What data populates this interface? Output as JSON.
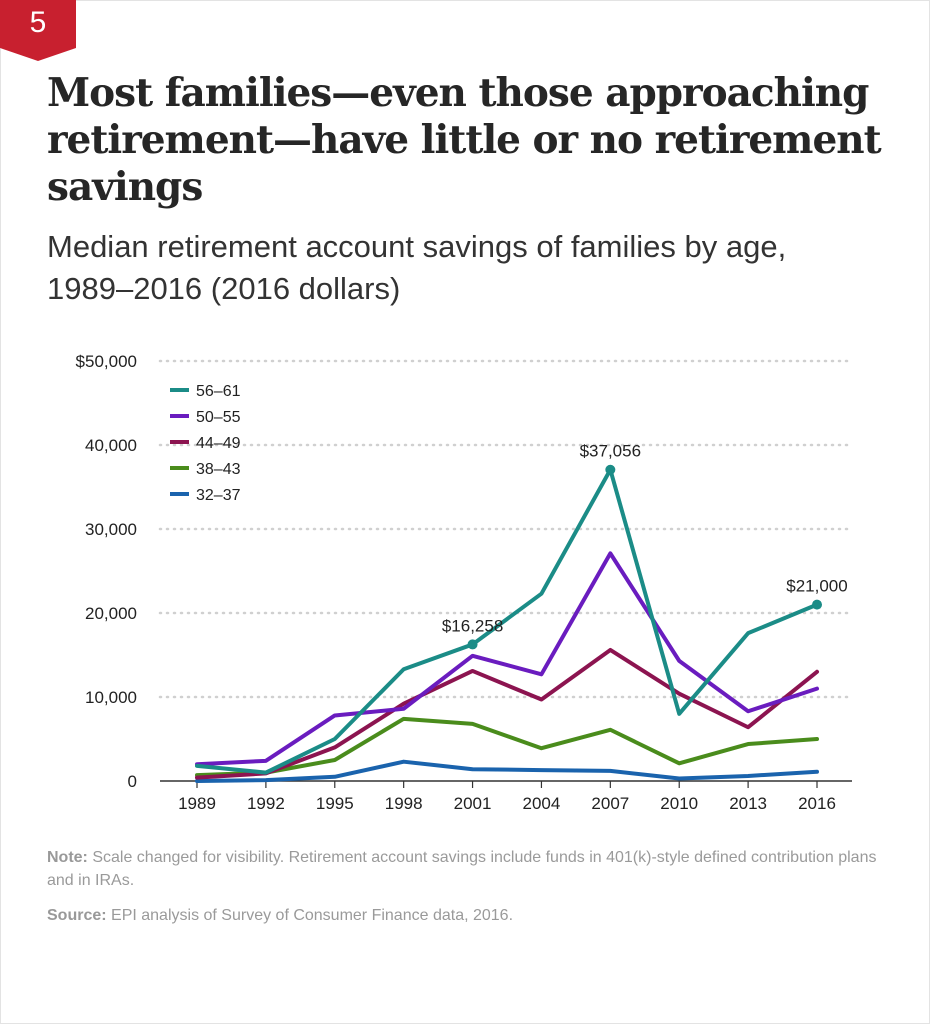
{
  "badge": "5",
  "title": "Most families—even those approaching retirement—have little or no retirement savings",
  "subtitle": "Median retirement account savings of families by age, 1989–2016 (2016 dollars)",
  "note": {
    "label": "Note:",
    "text": " Scale changed for visibility. Retirement account savings include funds in 401(k)-style defined contribution plans and in IRAs."
  },
  "source": {
    "label": "Source:",
    "text": " EPI analysis of Survey of Consumer Finance data, 2016."
  },
  "colors": {
    "badge": "#c8202f",
    "grid": "#d0d0d0",
    "axis": "#333333"
  },
  "chart_data": {
    "type": "line",
    "x": [
      "1989",
      "1992",
      "1995",
      "1998",
      "2001",
      "2004",
      "2007",
      "2010",
      "2013",
      "2016"
    ],
    "ylim": [
      0,
      50000
    ],
    "yticks": [
      0,
      10000,
      20000,
      30000,
      40000,
      50000
    ],
    "ytick_labels": [
      "0",
      "10,000",
      "20,000",
      "30,000",
      "40,000",
      "$50,000"
    ],
    "grid": "horizontal dotted",
    "legend_position": "top-left",
    "series": [
      {
        "name": "56–61",
        "color": "#1b8c87",
        "values": [
          1800,
          1000,
          5000,
          13300,
          16258,
          22300,
          37056,
          8000,
          17600,
          21000
        ]
      },
      {
        "name": "50–55",
        "color": "#6a1cbf",
        "values": [
          2000,
          2400,
          7800,
          8600,
          14900,
          12700,
          27100,
          14300,
          8300,
          11000
        ]
      },
      {
        "name": "44–49",
        "color": "#8c1450",
        "values": [
          400,
          900,
          4000,
          9200,
          13100,
          9700,
          15600,
          10400,
          6400,
          13000
        ]
      },
      {
        "name": "38–43",
        "color": "#4a8c1c",
        "values": [
          700,
          1000,
          2500,
          7400,
          6800,
          3900,
          6100,
          2100,
          4400,
          5000
        ]
      },
      {
        "name": "32–37",
        "color": "#1a63ad",
        "values": [
          0,
          100,
          500,
          2300,
          1400,
          1300,
          1200,
          300,
          600,
          1100
        ]
      }
    ],
    "annotations": [
      {
        "series": 0,
        "x": "2001",
        "label": "$16,258"
      },
      {
        "series": 0,
        "x": "2007",
        "label": "$37,056"
      },
      {
        "series": 0,
        "x": "2016",
        "label": "$21,000"
      }
    ]
  }
}
